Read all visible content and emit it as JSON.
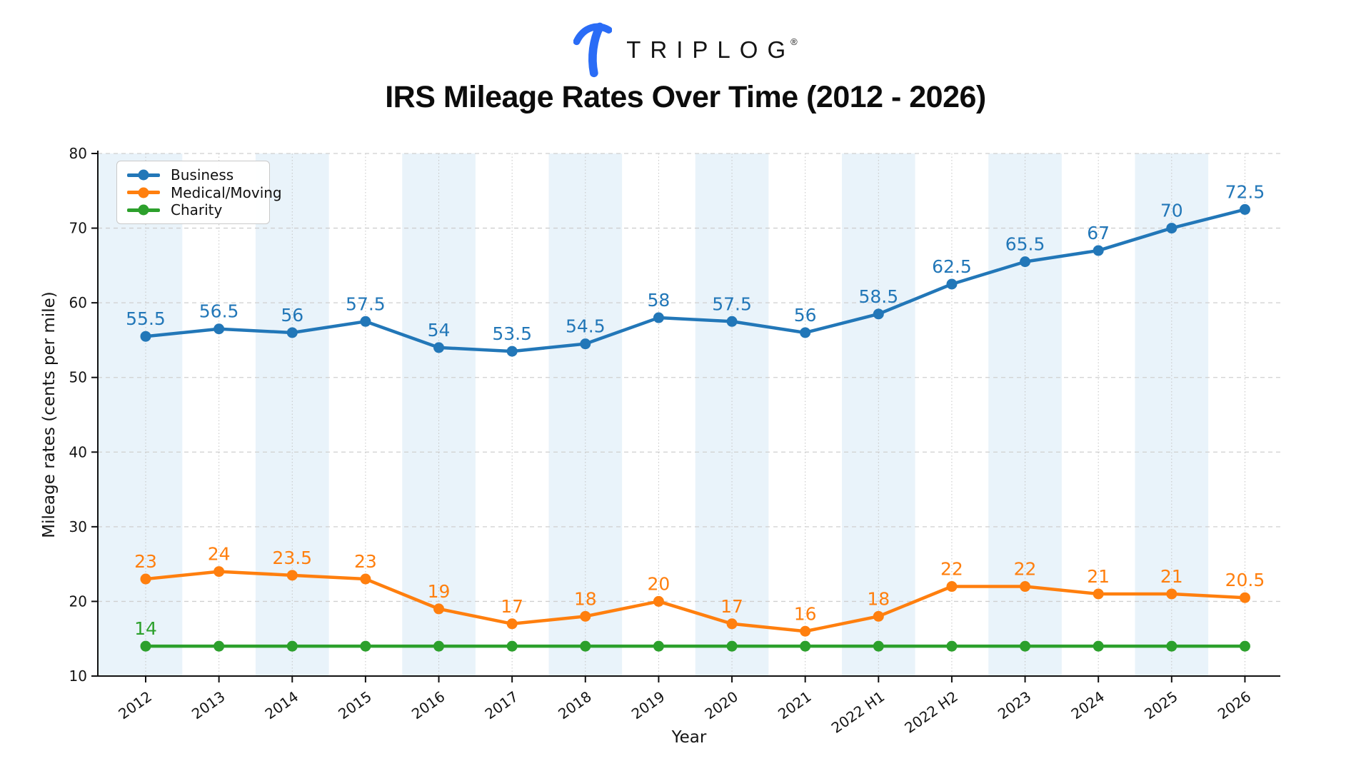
{
  "header": {
    "logo_text": "TRIPLOG",
    "logo_reg": "®",
    "logo_color": "#2a6cf6",
    "title": "IRS Mileage Rates Over Time (2012 - 2026)"
  },
  "chart_data": {
    "type": "line",
    "title": "IRS Mileage Rates Over Time (2012 - 2026)",
    "xlabel": "Year",
    "ylabel": "Mileage rates (cents per mile)",
    "categories": [
      "2012",
      "2013",
      "2014",
      "2015",
      "2016",
      "2017",
      "2018",
      "2019",
      "2020",
      "2021",
      "2022 H1",
      "2022 H2",
      "2023",
      "2024",
      "2025",
      "2026"
    ],
    "series": [
      {
        "name": "Business",
        "color": "#2277b8",
        "values": [
          55.5,
          56.5,
          56,
          57.5,
          54,
          53.5,
          54.5,
          58,
          57.5,
          56,
          58.5,
          62.5,
          65.5,
          67,
          70,
          72.5
        ],
        "labeled": "all"
      },
      {
        "name": "Medical/Moving",
        "color": "#ff7f0e",
        "values": [
          23,
          24,
          23.5,
          23,
          19,
          17,
          18,
          20,
          17,
          16,
          18,
          22,
          22,
          21,
          21,
          20.5
        ],
        "labeled": "all"
      },
      {
        "name": "Charity",
        "color": "#2ca02c",
        "values": [
          14,
          14,
          14,
          14,
          14,
          14,
          14,
          14,
          14,
          14,
          14,
          14,
          14,
          14,
          14,
          14
        ],
        "labeled": [
          0
        ]
      }
    ],
    "ylim": [
      10,
      80
    ],
    "yticks": [
      10,
      20,
      30,
      40,
      50,
      60,
      70,
      80
    ],
    "grid": true,
    "legend_position": "upper-left",
    "band_indices": [
      0,
      2,
      4,
      6,
      8,
      10,
      12,
      14
    ],
    "colors": {
      "band": "#e9f3fa",
      "grid_dashed": "#cfcfcf",
      "grid_dotted": "#c4c4c4",
      "axis": "#111111"
    }
  }
}
